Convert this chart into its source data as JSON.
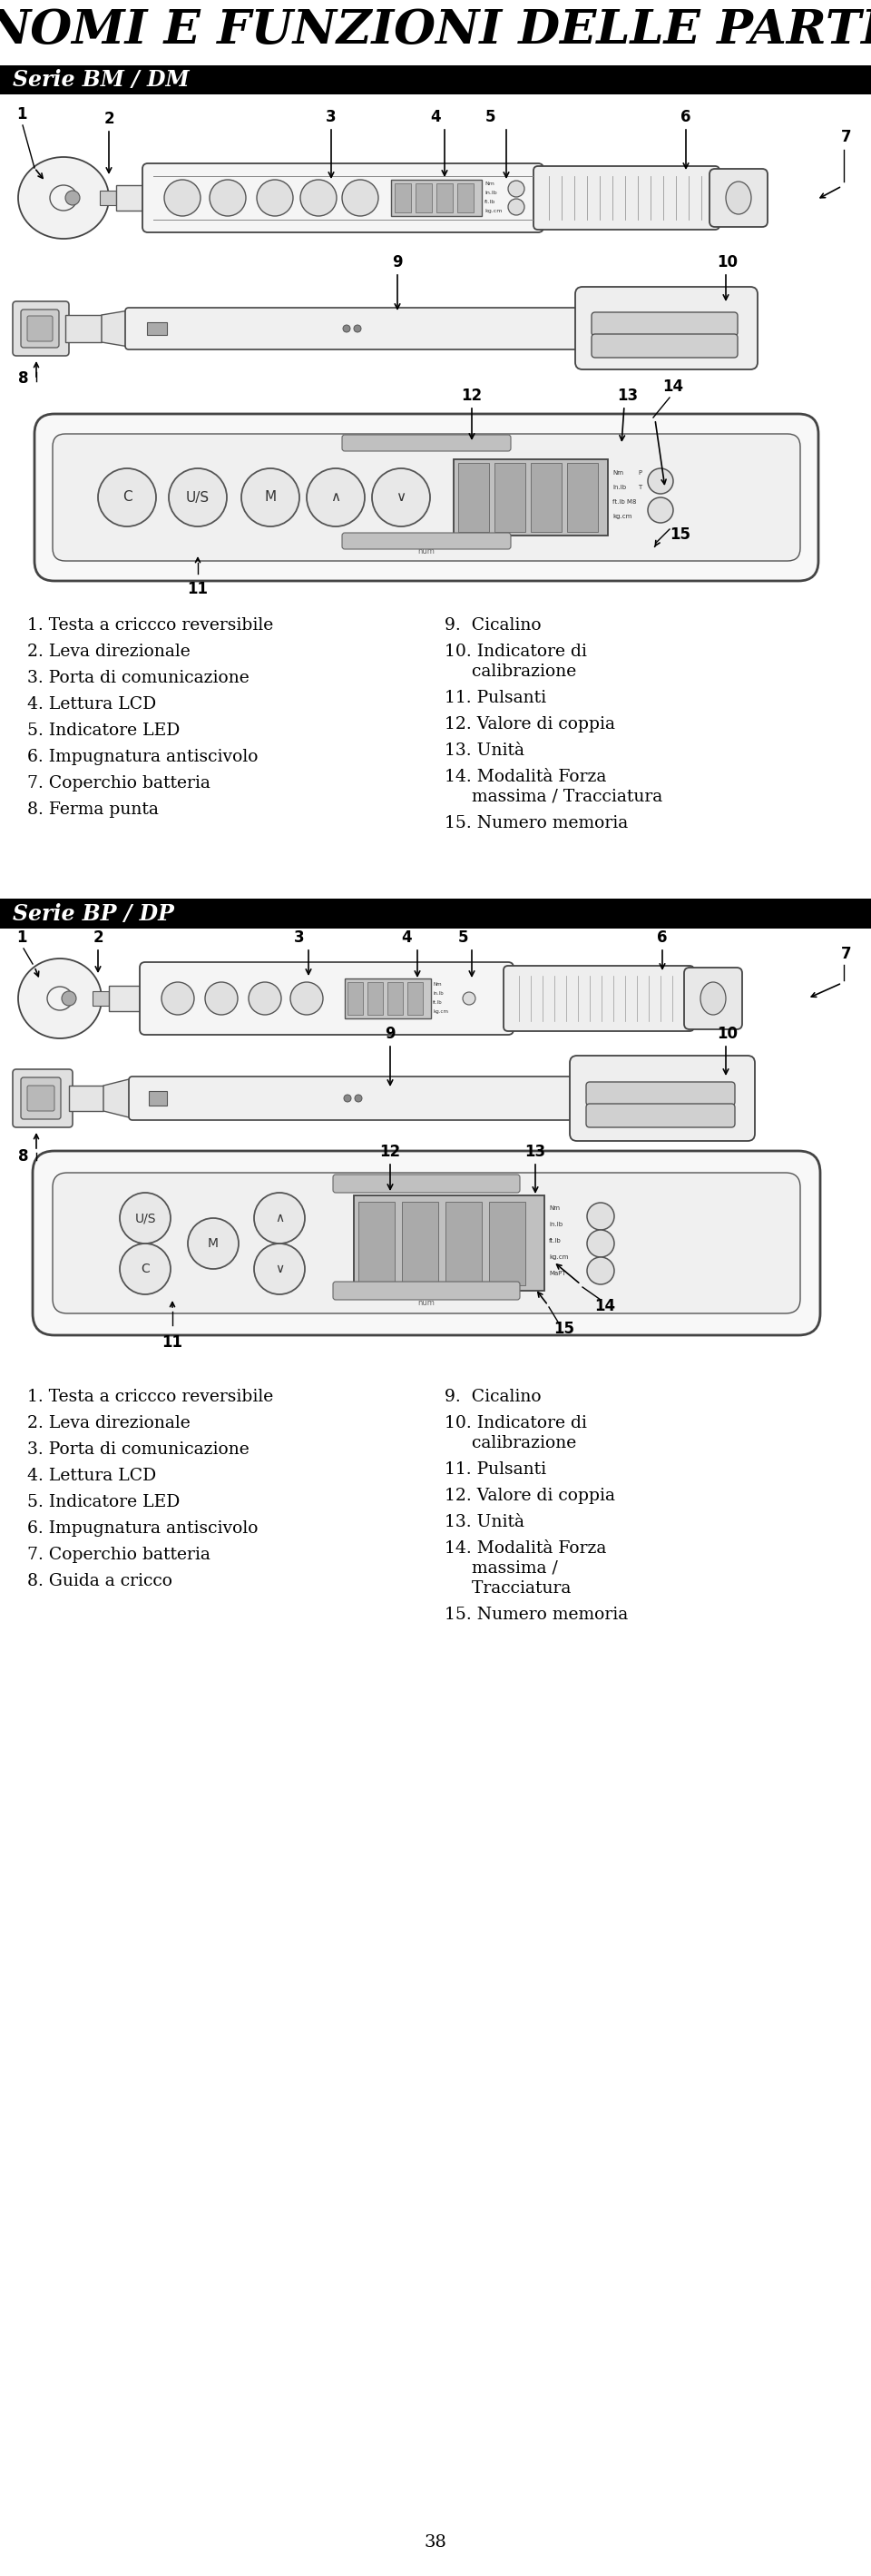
{
  "title": "NOMI E FUNZIONI DELLE PARTI",
  "section1_title": "Serie BM / DM",
  "section2_title": "Serie BP / DP",
  "bm_labels_left": [
    "1. Testa a criccco reversibile",
    "2. Leva direzionale",
    "3. Porta di comunicazione",
    "4. Lettura LCD",
    "5. Indicatore LED",
    "6. Impugnatura antiscivolo",
    "7. Coperchio batteria",
    "8. Ferma punta"
  ],
  "bm_labels_right_lines": [
    [
      "9.  Cicalino"
    ],
    [
      "10. Indicatore di",
      "     calibrazione"
    ],
    [
      "11. Pulsanti"
    ],
    [
      "12. Valore di coppia"
    ],
    [
      "13. Unità"
    ],
    [
      "14. Modalità Forza",
      "     massima / Tracciatura"
    ],
    [
      "15. Numero memoria"
    ]
  ],
  "bp_labels_left": [
    "1. Testa a criccco reversibile",
    "2. Leva direzionale",
    "3. Porta di comunicazione",
    "4. Lettura LCD",
    "5. Indicatore LED",
    "6. Impugnatura antiscivolo",
    "7. Coperchio batteria",
    "8. Guida a cricco"
  ],
  "bp_labels_right_lines": [
    [
      "9.  Cicalino"
    ],
    [
      "10. Indicatore di",
      "     calibrazione"
    ],
    [
      "11. Pulsanti"
    ],
    [
      "12. Valore di coppia"
    ],
    [
      "13. Unità"
    ],
    [
      "14. Modalità Forza",
      "     massima /",
      "     Tracciatura"
    ],
    [
      "15. Numero memoria"
    ]
  ],
  "page_number": "38",
  "bg_color": "#ffffff",
  "header_bg": "#000000",
  "header_text_color": "#ffffff",
  "title_color": "#000000",
  "text_color": "#000000",
  "label_fontsize": 13.5,
  "title_fontsize": 38,
  "header_fontsize": 17
}
